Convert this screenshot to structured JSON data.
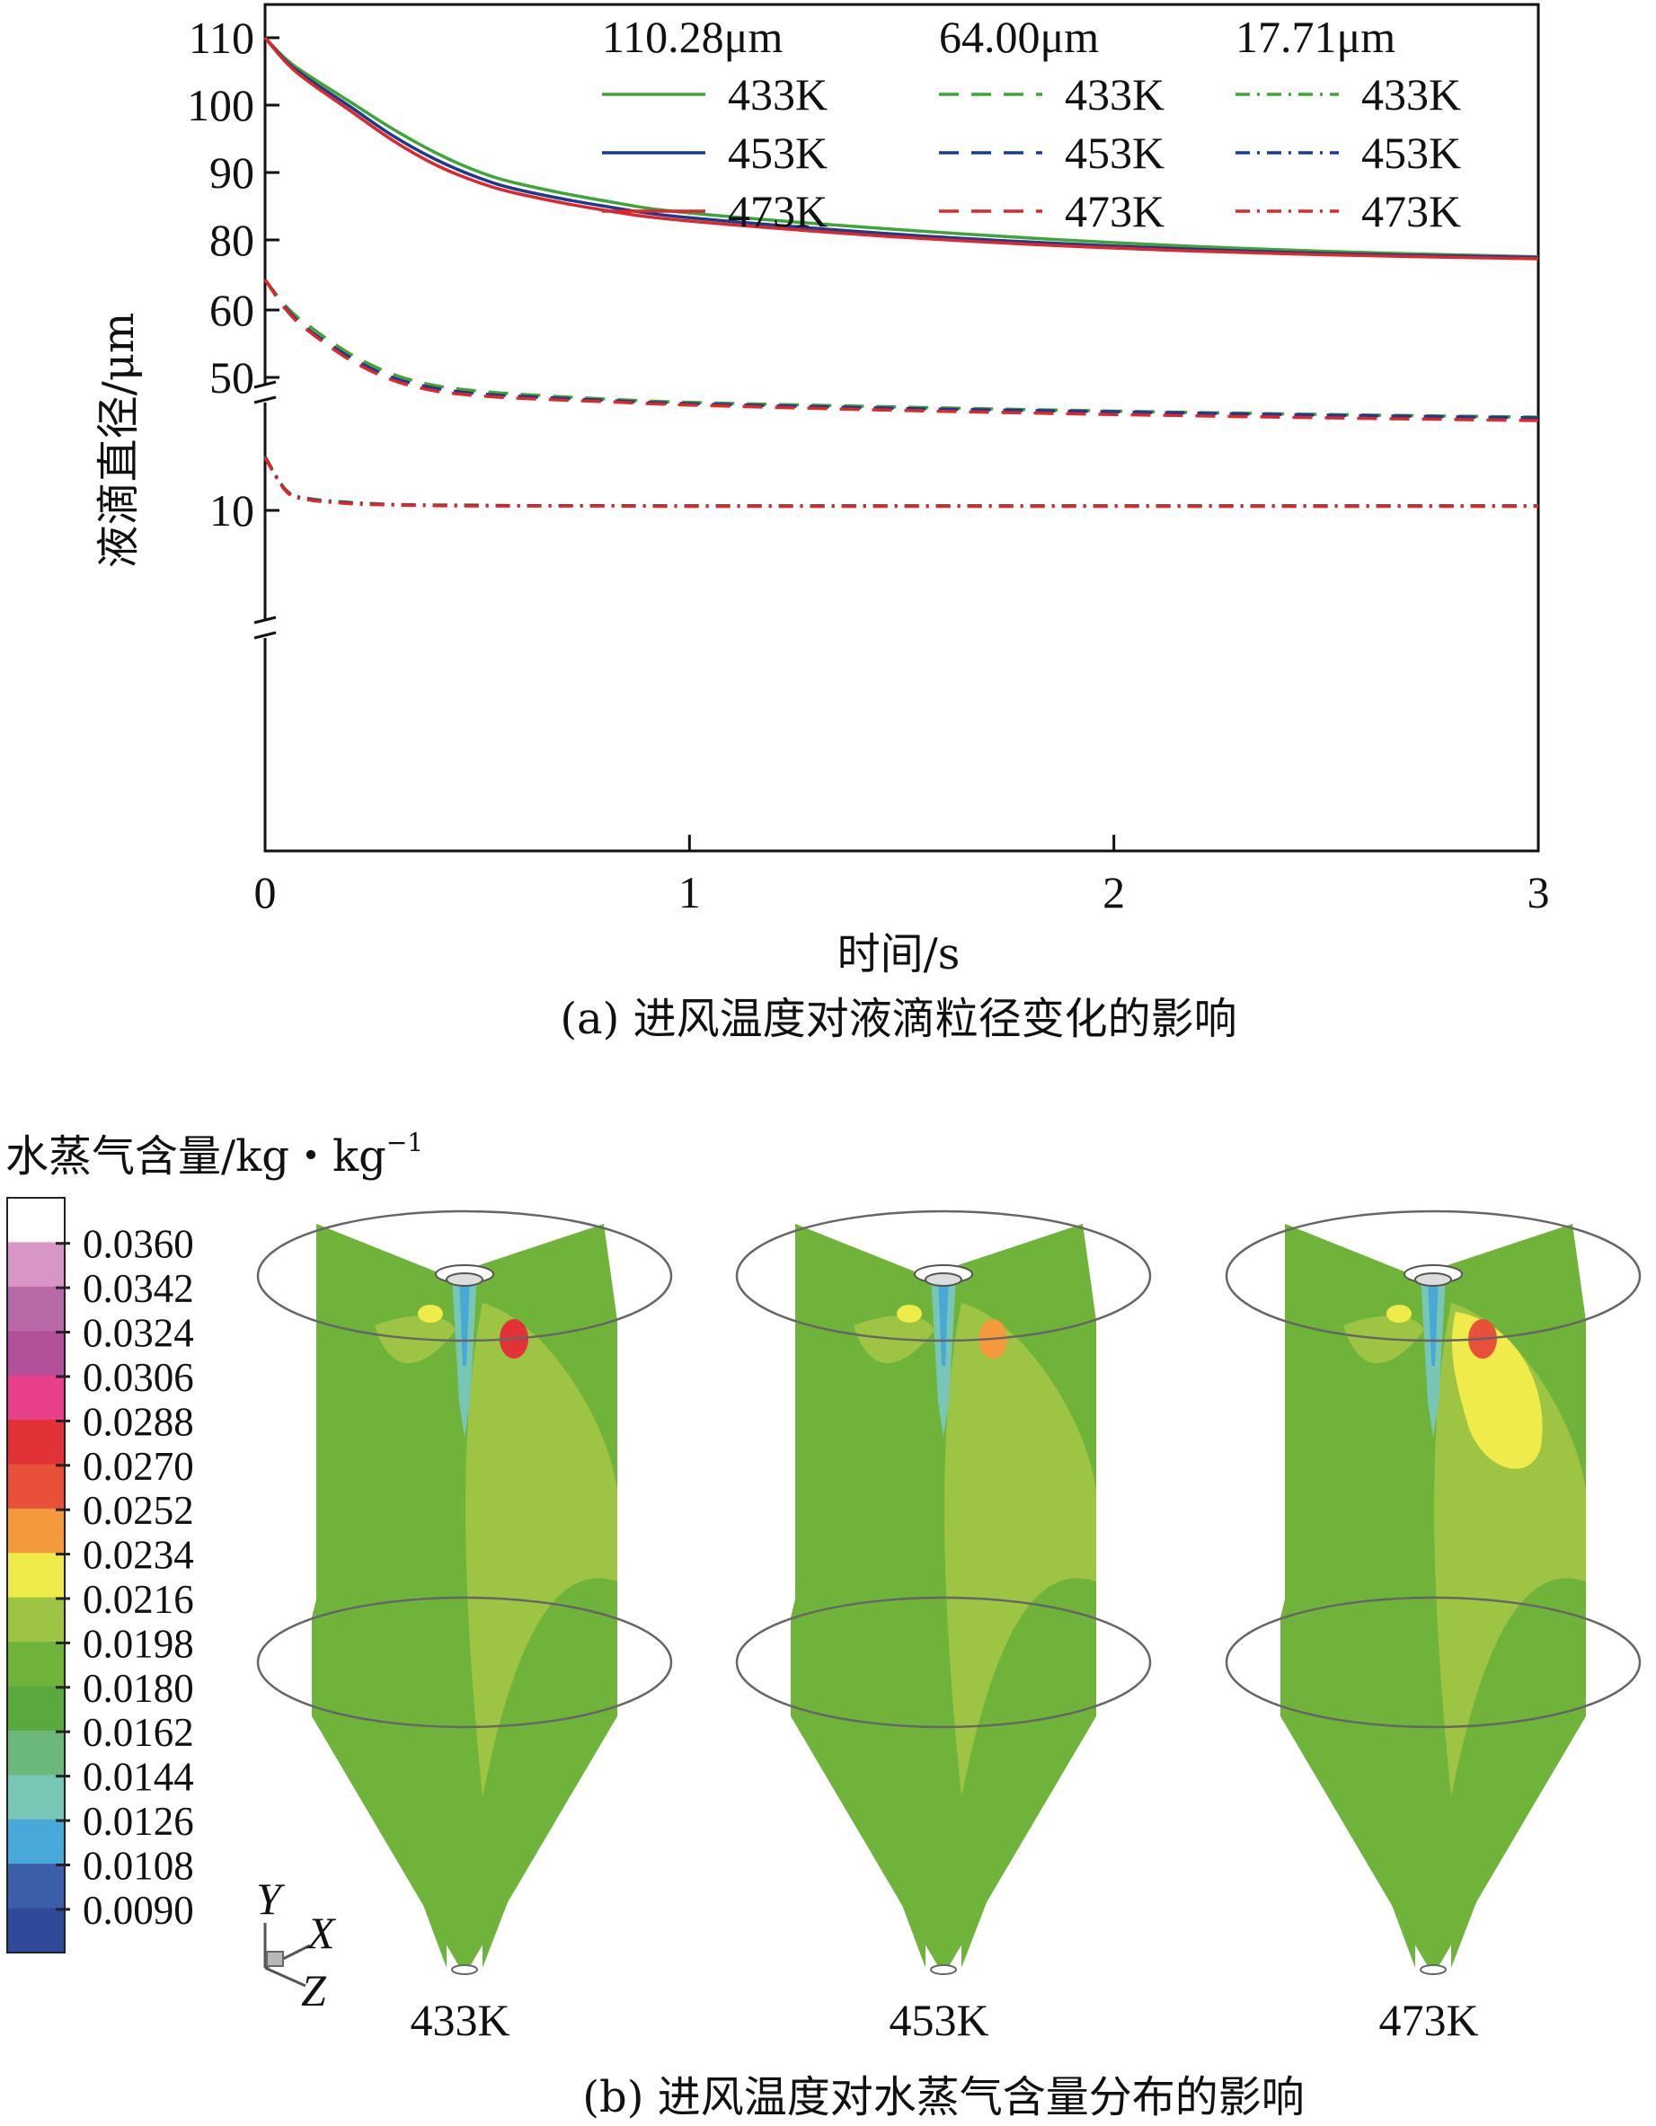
{
  "chart_data": {
    "type": "line",
    "title": "(a) 进风温度对液滴粒径变化的影响",
    "xlabel": "时间/s",
    "ylabel": "液滴直径/μm",
    "xlim": [
      0,
      3
    ],
    "x_ticks": [
      "0",
      "1",
      "2",
      "3"
    ],
    "y_ticks": [
      "110",
      "100",
      "90",
      "80",
      "60",
      "50",
      "10"
    ],
    "axis_breaks": true,
    "grid": false,
    "legend_position": "top-right",
    "legend_groups": [
      "110.28μm",
      "64.00μm",
      "17.71μm"
    ],
    "x": [
      0,
      0.05,
      0.1,
      0.2,
      0.3,
      0.4,
      0.5,
      0.6,
      0.8,
      1.0,
      1.5,
      2.0,
      2.5,
      3.0
    ],
    "series": [
      {
        "name": "433K",
        "group": "110.28μm",
        "color": "#3fa535",
        "dash": "solid",
        "values": [
          110,
          106.8,
          104.5,
          100.5,
          96.5,
          93,
          90.2,
          88.3,
          85.8,
          84.0,
          81.5,
          79.6,
          78.3,
          77.5
        ]
      },
      {
        "name": "453K",
        "group": "110.28μm",
        "color": "#1d3a8f",
        "dash": "solid",
        "values": [
          110,
          106.5,
          104,
          99.8,
          95.5,
          92,
          89.3,
          87.4,
          85.0,
          83.3,
          80.8,
          79.1,
          78.0,
          77.4
        ]
      },
      {
        "name": "473K",
        "group": "110.28μm",
        "color": "#e0252b",
        "dash": "solid",
        "values": [
          110,
          106.3,
          103.6,
          99.2,
          94.8,
          91.2,
          88.6,
          86.8,
          84.4,
          82.8,
          80.4,
          78.8,
          77.8,
          77.2
        ]
      },
      {
        "name": "433K",
        "group": "64.00μm",
        "color": "#3fa535",
        "dash": "dashed",
        "values": [
          64.5,
          60.5,
          57.8,
          53.5,
          50.5,
          48.8,
          48.0,
          47.5,
          46.8,
          46.3,
          45.6,
          45.0,
          44.5,
          44.1
        ]
      },
      {
        "name": "453K",
        "group": "64.00μm",
        "color": "#1d3a8f",
        "dash": "dashed",
        "values": [
          64.5,
          60.2,
          57.2,
          53.0,
          50.0,
          48.4,
          47.6,
          47.2,
          46.6,
          46.1,
          45.4,
          44.9,
          44.4,
          44.0
        ]
      },
      {
        "name": "473K",
        "group": "64.00μm",
        "color": "#e0252b",
        "dash": "dashed",
        "values": [
          64.5,
          60.0,
          57.0,
          52.6,
          49.6,
          48.0,
          47.3,
          46.9,
          46.4,
          45.9,
          45.1,
          44.5,
          44.0,
          43.6
        ]
      },
      {
        "name": "433K",
        "group": "17.71μm",
        "color": "#3fa535",
        "dash": "dashdot",
        "values": [
          18.0,
          13.0,
          11.8,
          11.2,
          10.9,
          10.8,
          10.8,
          10.7,
          10.7,
          10.7,
          10.7,
          10.7,
          10.7,
          10.7
        ]
      },
      {
        "name": "453K",
        "group": "17.71μm",
        "color": "#1d3a8f",
        "dash": "dashdot",
        "values": [
          17.9,
          12.9,
          11.7,
          11.1,
          10.85,
          10.75,
          10.7,
          10.7,
          10.7,
          10.65,
          10.65,
          10.65,
          10.65,
          10.65
        ]
      },
      {
        "name": "473K",
        "group": "17.71μm",
        "color": "#e0252b",
        "dash": "dashdot",
        "values": [
          17.8,
          12.8,
          11.6,
          11.0,
          10.8,
          10.7,
          10.65,
          10.65,
          10.65,
          10.6,
          10.6,
          10.6,
          10.6,
          10.6
        ]
      }
    ]
  },
  "panel_b": {
    "caption": "(b) 进风温度对水蒸气含量分布的影响",
    "colorbar_title": "水蒸气含量/kg・kg",
    "colorbar_title_sup": "−1",
    "colorbar_levels": [
      "0.0360",
      "0.0342",
      "0.0324",
      "0.0306",
      "0.0288",
      "0.0270",
      "0.0252",
      "0.0234",
      "0.0216",
      "0.0198",
      "0.0180",
      "0.0162",
      "0.0144",
      "0.0126",
      "0.0108",
      "0.0090"
    ],
    "colorbar_colors": [
      "#ffffff",
      "#d896c4",
      "#b86aa8",
      "#b2509a",
      "#e8408a",
      "#e23238",
      "#e8503a",
      "#f49a3c",
      "#eeeb4a",
      "#9ec443",
      "#6fb33b",
      "#5aa83e",
      "#6bb87a",
      "#78c6b6",
      "#48a8d8",
      "#3a5ea8",
      "#2e4a98"
    ],
    "axis_labels": {
      "y": "Y",
      "x": "X",
      "z": "Z"
    },
    "contours": [
      {
        "label": "433K",
        "hot_level": "0.0216",
        "peak_color": "#e23238"
      },
      {
        "label": "453K",
        "hot_level": "0.0216",
        "peak_color": "#f49a3c"
      },
      {
        "label": "473K",
        "hot_level": "0.0234",
        "peak_color": "#e8503a"
      }
    ]
  }
}
